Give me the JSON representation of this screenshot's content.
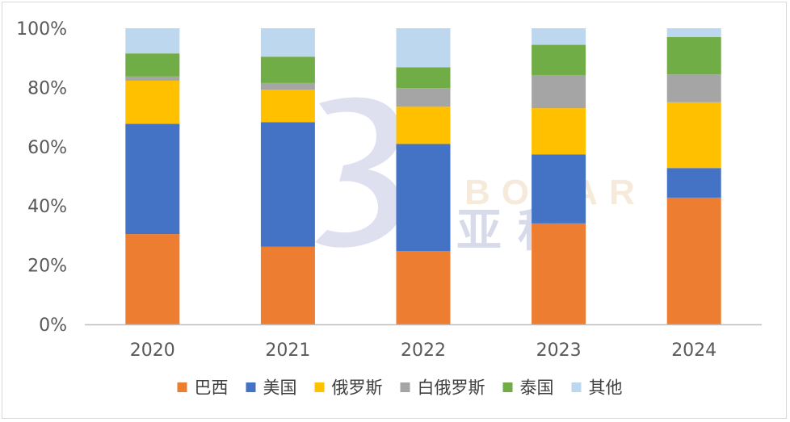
{
  "chart_data": {
    "type": "bar",
    "stacked": true,
    "percent": true,
    "categories": [
      "2020",
      "2021",
      "2022",
      "2023",
      "2024"
    ],
    "ylim": [
      0,
      100
    ],
    "yticks": [
      "0%",
      "20%",
      "40%",
      "60%",
      "80%",
      "100%"
    ],
    "grid": false,
    "legend_position": "bottom",
    "series": [
      {
        "name": "巴西",
        "color": "#ED7D31",
        "values": [
          30.5,
          26.2,
          24.8,
          34.1,
          42.8
        ]
      },
      {
        "name": "美国",
        "color": "#4472C4",
        "values": [
          37.2,
          42.1,
          36.1,
          23.3,
          10.0
        ]
      },
      {
        "name": "俄罗斯",
        "color": "#FFC000",
        "values": [
          14.6,
          10.9,
          12.6,
          15.6,
          22.2
        ]
      },
      {
        "name": "白俄罗斯",
        "color": "#A5A5A5",
        "values": [
          1.4,
          2.3,
          6.3,
          11.2,
          9.4
        ]
      },
      {
        "name": "泰国",
        "color": "#70AD47",
        "values": [
          7.8,
          8.9,
          7.0,
          10.2,
          12.6
        ]
      },
      {
        "name": "其他",
        "color": "#BDD7EE",
        "values": [
          8.5,
          9.6,
          13.2,
          5.6,
          3.0
        ]
      }
    ],
    "watermark": {
      "brand_latin": "BOYAR",
      "brand_cn": "亚科"
    }
  }
}
